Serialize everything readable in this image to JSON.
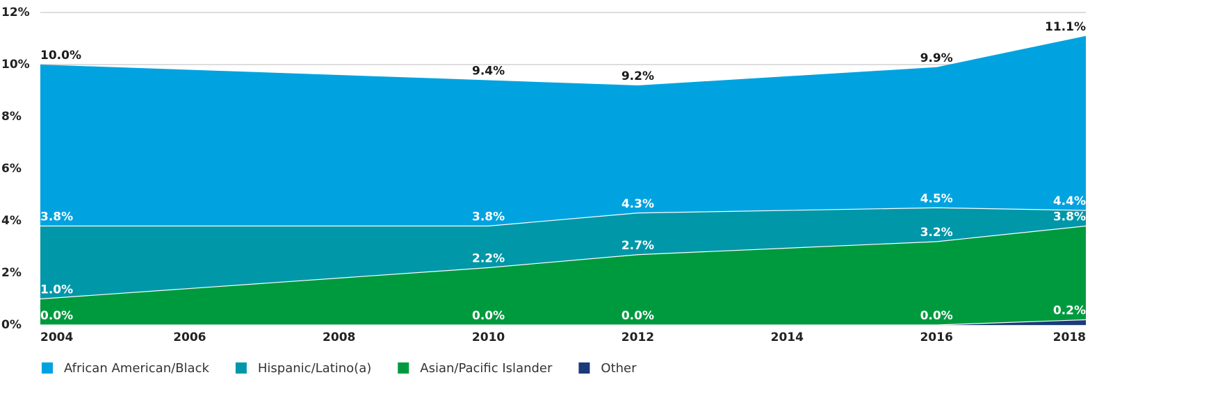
{
  "chart_data": {
    "type": "area",
    "x": [
      2004,
      2010,
      2012,
      2016,
      2018
    ],
    "xlim": [
      2004,
      2018
    ],
    "xticks": [
      2004,
      2006,
      2008,
      2010,
      2012,
      2014,
      2016,
      2018
    ],
    "ylim": [
      0,
      12
    ],
    "yticks": [
      {
        "value": 0,
        "label": "0%"
      },
      {
        "value": 2,
        "label": "2%"
      },
      {
        "value": 4,
        "label": "4%"
      },
      {
        "value": 6,
        "label": "6%"
      },
      {
        "value": 8,
        "label": "8%"
      },
      {
        "value": 10,
        "label": "10%"
      },
      {
        "value": 12,
        "label": "12%"
      }
    ],
    "grid": true,
    "legend": "bottom",
    "series": [
      {
        "name": "African American/Black",
        "color": "#00a3e0",
        "values": [
          10.0,
          9.4,
          9.2,
          9.9,
          11.1
        ],
        "value_labels": [
          "10.0%",
          "9.4%",
          "9.2%",
          "9.9%",
          "11.1%"
        ]
      },
      {
        "name": "Hispanic/Latino(a)",
        "color": "#0097a9",
        "values": [
          3.8,
          3.8,
          4.3,
          4.5,
          4.4
        ],
        "value_labels": [
          "3.8%",
          "3.8%",
          "4.3%",
          "4.5%",
          "4.4%"
        ]
      },
      {
        "name": "Asian/Pacific Islander",
        "color": "#009a3e",
        "values": [
          1.0,
          2.2,
          2.7,
          3.2,
          3.8
        ],
        "value_labels": [
          "1.0%",
          "2.2%",
          "2.7%",
          "3.2%",
          "3.8%"
        ]
      },
      {
        "name": "Other",
        "color": "#1a3a7a",
        "values": [
          0.0,
          0.0,
          0.0,
          0.0,
          0.2
        ],
        "value_labels": [
          "0.0%",
          "0.0%",
          "0.0%",
          "0.0%",
          "0.2%"
        ]
      }
    ]
  }
}
